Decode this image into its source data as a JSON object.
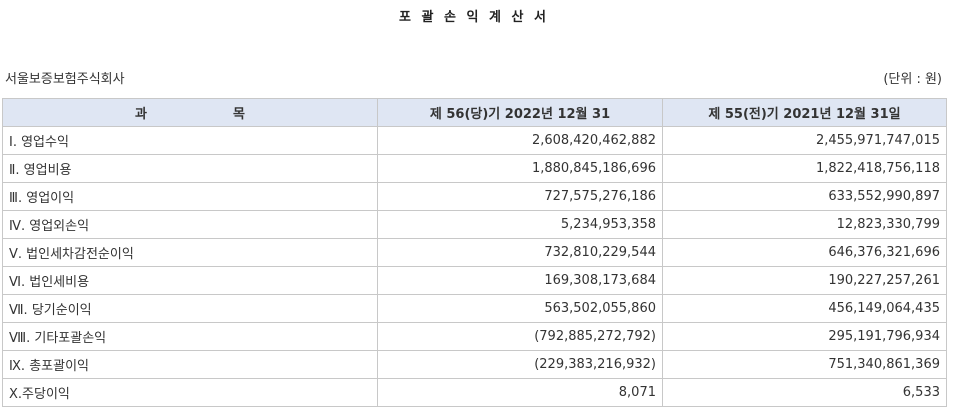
{
  "document": {
    "title": "포 괄 손 익 계 산 서",
    "company": "서울보증보험주식회사",
    "unit": "(단위 : 원)"
  },
  "table": {
    "headers": {
      "subject_parts": [
        "과",
        "목"
      ],
      "current": "제 56(당)기 2022년 12월 31",
      "prior": "제 55(전)기 2021년 12월 31일"
    },
    "rows": [
      {
        "item": "Ⅰ. 영업수익",
        "current": "2,608,420,462,882",
        "prior": "2,455,971,747,015"
      },
      {
        "item": "Ⅱ. 영업비용",
        "current": "1,880,845,186,696",
        "prior": "1,822,418,756,118"
      },
      {
        "item": "Ⅲ. 영업이익",
        "current": "727,575,276,186",
        "prior": "633,552,990,897"
      },
      {
        "item": "Ⅳ. 영업외손익",
        "current": "5,234,953,358",
        "prior": "12,823,330,799"
      },
      {
        "item": "Ⅴ. 법인세차감전순이익",
        "current": "732,810,229,544",
        "prior": "646,376,321,696"
      },
      {
        "item": "Ⅵ. 법인세비용",
        "current": "169,308,173,684",
        "prior": "190,227,257,261"
      },
      {
        "item": "Ⅶ. 당기순이익",
        "current": "563,502,055,860",
        "prior": "456,149,064,435"
      },
      {
        "item": "Ⅷ. 기타포괄손익",
        "current": "(792,885,272,792)",
        "prior": "295,191,796,934"
      },
      {
        "item": "Ⅸ. 총포괄이익",
        "current": "(229,383,216,932)",
        "prior": "751,340,861,369"
      },
      {
        "item": "Ⅹ.주당이익",
        "current": "8,071",
        "prior": "6,533"
      }
    ]
  },
  "colors": {
    "header_bg": "#dfe6f3",
    "border": "#c8c8c8",
    "text": "#333333"
  }
}
